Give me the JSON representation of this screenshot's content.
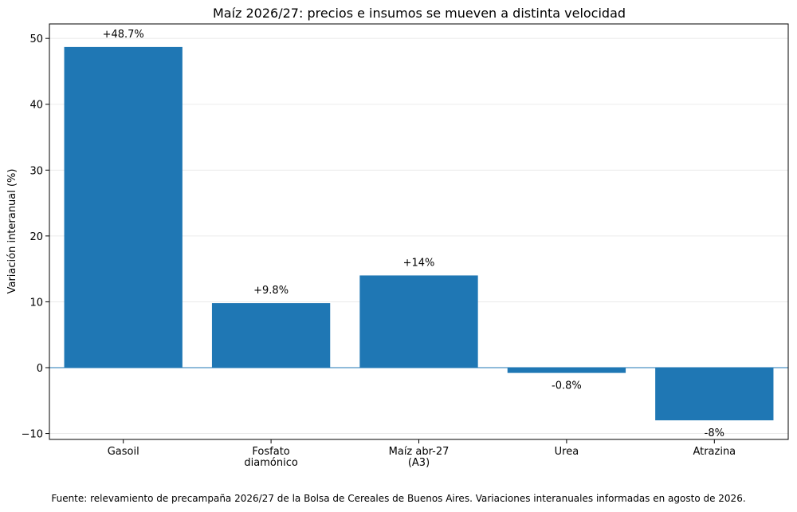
{
  "chart_data": {
    "type": "bar",
    "title": "Maíz 2026/27: precios e insumos se mueven a distinta velocidad",
    "xlabel": "",
    "ylabel": "Variación interanual (%)",
    "categories": [
      "Gasoil",
      "Fosfato\ndiamónico",
      "Maíz abr-27\n(A3)",
      "Urea",
      "Atrazina"
    ],
    "values": [
      48.7,
      9.8,
      14,
      -0.8,
      -8
    ],
    "data_labels": [
      "+48.7%",
      "+9.8%",
      "+14%",
      "-0.8%",
      "-8%"
    ],
    "ylim": [
      -10.9,
      52.2
    ],
    "yticks": [
      -10,
      0,
      10,
      20,
      30,
      40,
      50
    ],
    "grid": "horizontal",
    "bar_color": "#1f77b4",
    "zero_line_color": "#1f77b4"
  },
  "footnote": "Fuente: relevamiento de precampaña 2026/27 de la Bolsa de Cereales de Buenos Aires. Variaciones interanuales informadas en agosto de 2026."
}
